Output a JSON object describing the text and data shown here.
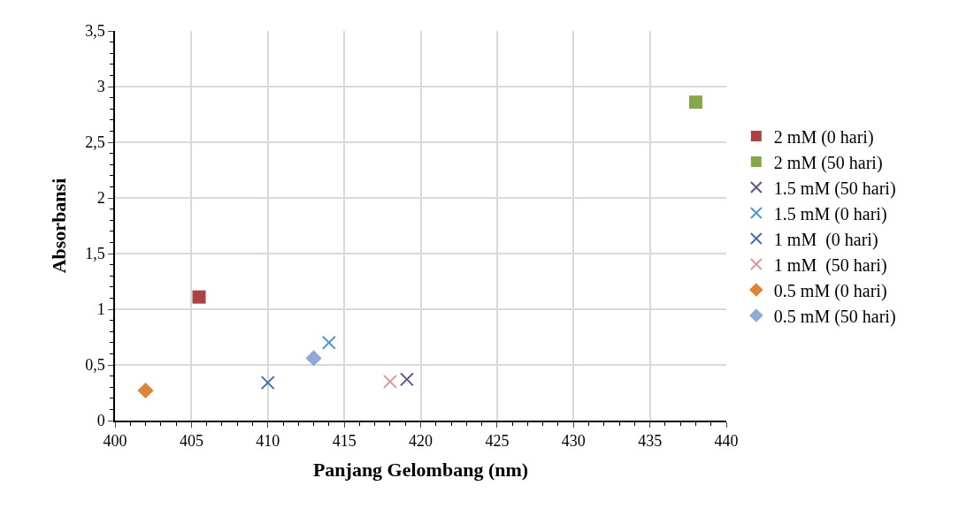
{
  "chart_data": {
    "type": "scatter",
    "xlabel": "Panjang Gelombang (nm)",
    "ylabel": "Absorbansi",
    "xlim": [
      400,
      440
    ],
    "xticks": [
      400,
      405,
      410,
      415,
      420,
      425,
      430,
      435,
      440
    ],
    "ylim": [
      0,
      3.5
    ],
    "yticks": [
      0,
      {
        "value": 0.5,
        "label": "0,5"
      },
      1,
      {
        "value": 1.5,
        "label": "1,5"
      },
      2,
      {
        "value": 2.5,
        "label": "2,5"
      },
      3,
      {
        "value": 3.5,
        "label": "3,5"
      }
    ],
    "grid": true,
    "legend": "right",
    "series": [
      {
        "name": "2 mM (0 hari)",
        "color": "#a94442",
        "marker": "square",
        "x": [
          405.5
        ],
        "values": [
          1.11
        ]
      },
      {
        "name": "2 mM (50 hari)",
        "color": "#86a84a",
        "marker": "square",
        "x": [
          438
        ],
        "values": [
          2.86
        ]
      },
      {
        "name": "1.5 mM (50 hari)",
        "color": "#6a4f8f",
        "marker": "cross",
        "x": [
          419.1
        ],
        "values": [
          0.37
        ]
      },
      {
        "name": "1.5 mM (0 hari)",
        "color": "#4a9bc8",
        "marker": "cross",
        "x": [
          414
        ],
        "values": [
          0.7
        ]
      },
      {
        "name": "1 mM  (0 hari)",
        "color": "#3f6fb0",
        "marker": "cross",
        "x": [
          410
        ],
        "values": [
          0.34
        ]
      },
      {
        "name": "1 mM  (50 hari)",
        "color": "#d89a9a",
        "marker": "cross",
        "x": [
          418
        ],
        "values": [
          0.35
        ]
      },
      {
        "name": "0.5 mM (0 hari)",
        "color": "#dd8438",
        "marker": "diamond",
        "x": [
          402
        ],
        "values": [
          0.27
        ]
      },
      {
        "name": "0.5 mM (50 hari)",
        "color": "#8faad6",
        "marker": "diamond",
        "x": [
          413
        ],
        "values": [
          0.56
        ]
      }
    ]
  }
}
